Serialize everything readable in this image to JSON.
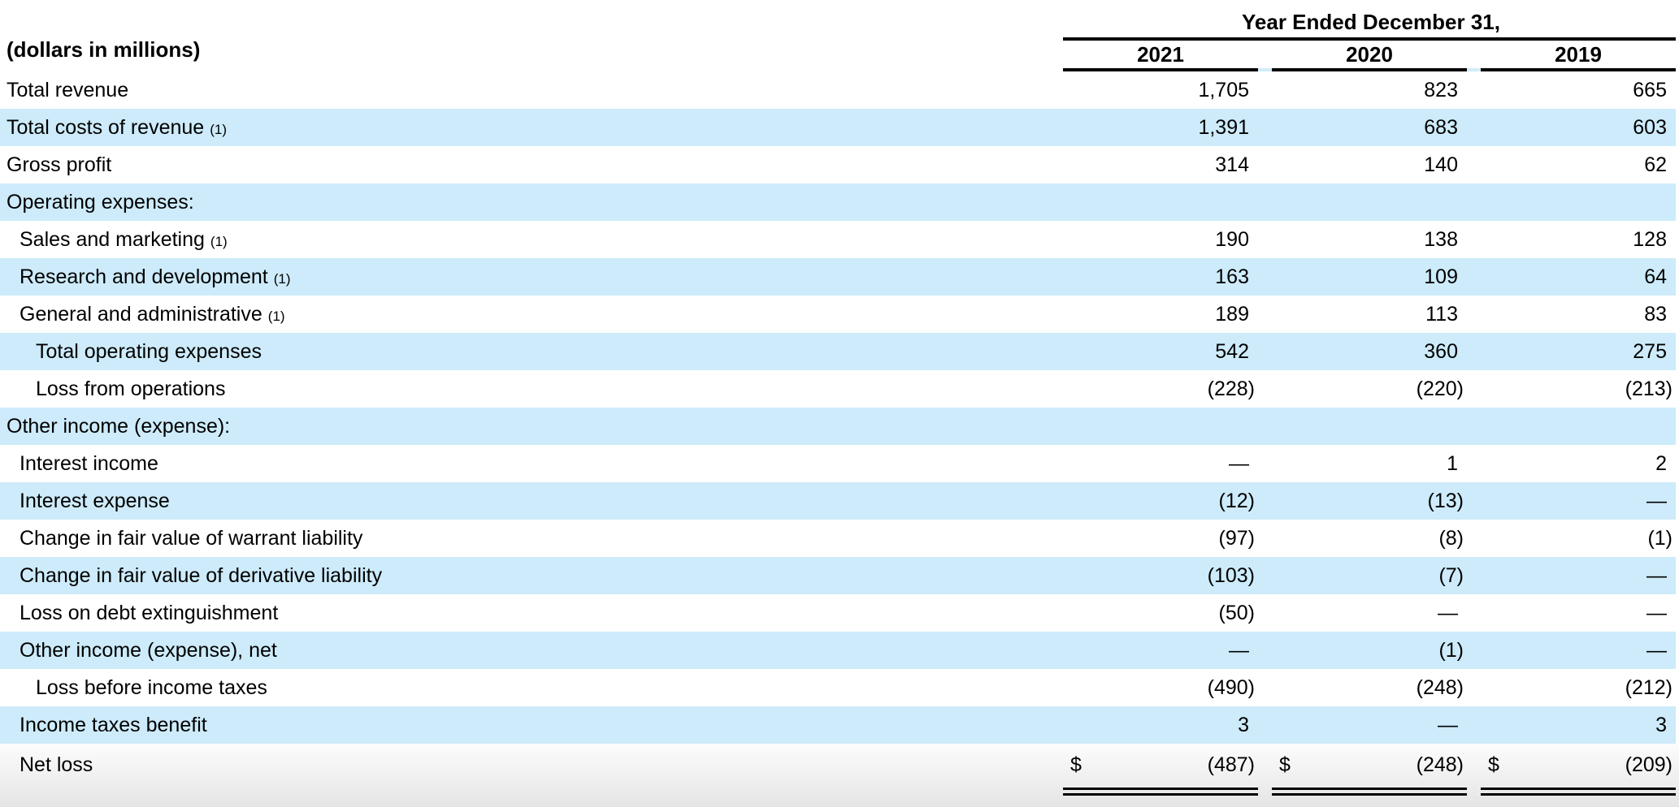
{
  "table": {
    "units_note": "(dollars in millions)",
    "period_header": "Year Ended December 31,",
    "years": [
      "2021",
      "2020",
      "2019"
    ],
    "currency_symbol": "$",
    "footnote_marker": "(1)",
    "nil_symbol": "—",
    "colors": {
      "stripe_blue": "#cdebfa",
      "rule_black": "#000000",
      "total_row_gradient_top": "#fcfcfc",
      "total_row_gradient_bottom": "#e5e5e5"
    },
    "rows": [
      {
        "label": "Total revenue",
        "indent": 0,
        "footnote": false,
        "shade": "white",
        "values": [
          "1,705",
          "823",
          "665"
        ]
      },
      {
        "label": "Total costs of revenue",
        "indent": 0,
        "footnote": true,
        "shade": "blue",
        "values": [
          "1,391",
          "683",
          "603"
        ]
      },
      {
        "label": "Gross profit",
        "indent": 0,
        "footnote": false,
        "shade": "white",
        "values": [
          "314",
          "140",
          "62"
        ]
      },
      {
        "label": "Operating expenses:",
        "indent": 0,
        "footnote": false,
        "shade": "blue",
        "values": [
          "",
          "",
          ""
        ]
      },
      {
        "label": "Sales and marketing",
        "indent": 1,
        "footnote": true,
        "shade": "white",
        "values": [
          "190",
          "138",
          "128"
        ]
      },
      {
        "label": "Research and development",
        "indent": 1,
        "footnote": true,
        "shade": "blue",
        "values": [
          "163",
          "109",
          "64"
        ]
      },
      {
        "label": "General and administrative",
        "indent": 1,
        "footnote": true,
        "shade": "white",
        "values": [
          "189",
          "113",
          "83"
        ]
      },
      {
        "label": "Total operating expenses",
        "indent": 2,
        "footnote": false,
        "shade": "blue",
        "values": [
          "542",
          "360",
          "275"
        ]
      },
      {
        "label": "Loss from operations",
        "indent": 2,
        "footnote": false,
        "shade": "white",
        "values": [
          "(228)",
          "(220)",
          "(213)"
        ]
      },
      {
        "label": "Other income (expense):",
        "indent": 0,
        "footnote": false,
        "shade": "blue",
        "values": [
          "",
          "",
          ""
        ]
      },
      {
        "label": "Interest income",
        "indent": 1,
        "footnote": false,
        "shade": "white",
        "values": [
          "—",
          "1",
          "2"
        ]
      },
      {
        "label": "Interest expense",
        "indent": 1,
        "footnote": false,
        "shade": "blue",
        "values": [
          "(12)",
          "(13)",
          "—"
        ]
      },
      {
        "label": "Change in fair value of warrant liability",
        "indent": 1,
        "footnote": false,
        "shade": "white",
        "values": [
          "(97)",
          "(8)",
          "(1)"
        ]
      },
      {
        "label": "Change in fair value of derivative liability",
        "indent": 1,
        "footnote": false,
        "shade": "blue",
        "values": [
          "(103)",
          "(7)",
          "—"
        ]
      },
      {
        "label": "Loss on debt extinguishment",
        "indent": 1,
        "footnote": false,
        "shade": "white",
        "values": [
          "(50)",
          "—",
          "—"
        ]
      },
      {
        "label": "Other income (expense), net",
        "indent": 1,
        "footnote": false,
        "shade": "blue",
        "values": [
          "—",
          "(1)",
          "—"
        ]
      },
      {
        "label": "Loss before income taxes",
        "indent": 2,
        "footnote": false,
        "shade": "white",
        "values": [
          "(490)",
          "(248)",
          "(212)"
        ]
      },
      {
        "label": "Income taxes benefit",
        "indent": 1,
        "footnote": false,
        "shade": "blue",
        "values": [
          "3",
          "—",
          "3"
        ]
      },
      {
        "label": "Net loss",
        "indent": 1,
        "footnote": false,
        "shade": "total",
        "currency": true,
        "double_underline": true,
        "values": [
          "(487)",
          "(248)",
          "(209)"
        ]
      }
    ]
  }
}
